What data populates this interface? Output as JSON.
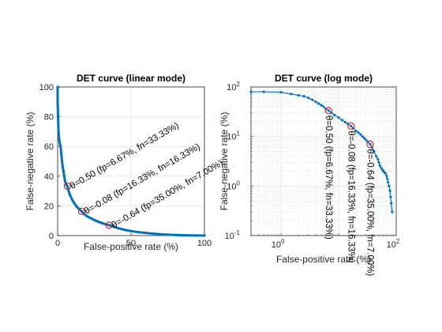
{
  "chart_data": [
    {
      "type": "line",
      "title": "DET curve (linear mode)",
      "xlabel": "False-positive rate (%)",
      "ylabel": "False-negative rate (%)",
      "xlim": [
        0,
        100
      ],
      "ylim": [
        0,
        100
      ],
      "xticks": [
        "0",
        "50",
        "100"
      ],
      "yticks": [
        "0",
        "20",
        "40",
        "60",
        "80",
        "100"
      ],
      "grid": true,
      "series_color": "#0072bd",
      "marker_color": "#e0202a",
      "curve": {
        "x": [
          0,
          0,
          0.3,
          0.6,
          1,
          1.5,
          2,
          2.5,
          3,
          3.5,
          4,
          4.5,
          5,
          5.5,
          6,
          6.67,
          7.5,
          8.5,
          10,
          11.5,
          13,
          14.5,
          16.33,
          18,
          20,
          22,
          24,
          26,
          28,
          30,
          32,
          35,
          38,
          41,
          45,
          50,
          55,
          60,
          65,
          70,
          75,
          80,
          85,
          90,
          95,
          100
        ],
        "y": [
          100,
          90,
          80,
          70,
          65,
          62,
          60,
          55,
          50,
          46,
          43,
          40,
          37,
          35,
          34,
          33.33,
          30,
          27,
          24,
          21.5,
          19.5,
          18,
          16.33,
          14.5,
          13,
          12,
          11,
          10,
          9.2,
          8.5,
          7.8,
          7,
          6,
          5,
          4,
          3,
          2.3,
          1.8,
          1.3,
          0.9,
          0.6,
          0.4,
          0.2,
          0.1,
          0.05,
          0
        ]
      },
      "points": [
        {
          "x": 6.67,
          "y": 33.33,
          "label": "θ=0.50 (fp=6.67%, fn=33.33%)"
        },
        {
          "x": 16.33,
          "y": 16.33,
          "label": "θ=-0.08 (fp=16.33%, fn=16.33%)"
        },
        {
          "x": 35.0,
          "y": 7.0,
          "label": "θ=-0.64 (fp=35.00%, fn=7.00%)"
        }
      ]
    },
    {
      "type": "line",
      "title": "DET curve (log mode)",
      "xlabel": "False-positive rate (%)",
      "ylabel": "False-negative rate (%)",
      "xscale": "log",
      "yscale": "log",
      "xlim": [
        0.3,
        100
      ],
      "ylim": [
        0.1,
        100
      ],
      "xticks": [
        {
          "base": "10",
          "exp": "0"
        },
        {
          "base": "10",
          "exp": "2"
        }
      ],
      "yticks": [
        {
          "base": "10",
          "exp": "-1"
        },
        {
          "base": "10",
          "exp": "0"
        },
        {
          "base": "10",
          "exp": "1"
        },
        {
          "base": "10",
          "exp": "2"
        }
      ],
      "grid": true,
      "series_color": "#0072bd",
      "marker_color": "#e0202a",
      "curve": {
        "x": [
          0.3,
          0.5,
          1,
          1.5,
          2,
          2.5,
          3,
          3.5,
          4,
          4.5,
          5,
          5.5,
          6,
          6.67,
          7.5,
          8.5,
          10,
          11.5,
          13,
          14.5,
          16.33,
          18,
          20,
          22,
          24,
          26,
          28,
          30,
          32,
          35,
          38,
          41,
          45,
          48,
          50,
          52,
          55,
          58,
          60,
          62,
          65,
          68,
          70,
          72,
          75,
          78,
          80,
          82,
          85
        ],
        "y": [
          80,
          80,
          78,
          72,
          68,
          65,
          60,
          55,
          50,
          46,
          43,
          40,
          36,
          33.33,
          30,
          27,
          24,
          21.5,
          19.5,
          18,
          16.33,
          14.5,
          13,
          12,
          11,
          10,
          9.2,
          8.5,
          7.8,
          7,
          6,
          5,
          4,
          3.5,
          3,
          2.6,
          2.3,
          2.1,
          2,
          1.9,
          1.8,
          1.6,
          1.4,
          1.2,
          1.0,
          0.8,
          0.6,
          0.45,
          0.3
        ]
      },
      "points": [
        {
          "x": 6.67,
          "y": 33.33,
          "label": "θ=0.50 (fp=6.67%, fn=33.33%)"
        },
        {
          "x": 16.33,
          "y": 16.33,
          "label": "θ=-0.08 (fp=16.33%, fn=16.33%)"
        },
        {
          "x": 35.0,
          "y": 7.0,
          "label": "θ=-0.64 (fp=35.00%, fn=7.00%)"
        }
      ]
    }
  ]
}
